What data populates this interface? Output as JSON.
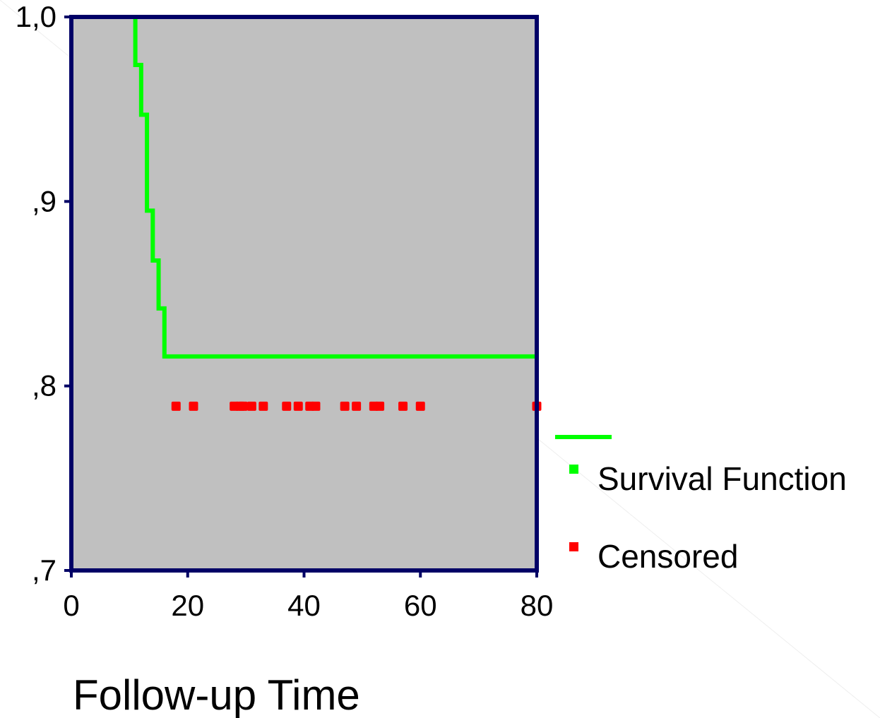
{
  "chart_data": {
    "type": "line",
    "xlabel": "Follow-up Time",
    "ylabel": "",
    "xlim": [
      0,
      80
    ],
    "ylim": [
      0.7,
      1.0
    ],
    "x_ticks": [
      0,
      20,
      40,
      60,
      80
    ],
    "x_tick_labels": [
      "0",
      "20",
      "40",
      "60",
      "80"
    ],
    "y_ticks": [
      0.7,
      0.8,
      0.9,
      1.0
    ],
    "y_tick_labels": [
      ",7",
      ",8",
      ",9",
      "1,0"
    ],
    "grid": false,
    "legend_position": "right",
    "series": [
      {
        "name": "Survival Function",
        "kind": "step",
        "color": "#00ff00",
        "x": [
          10,
          11,
          12,
          13,
          14,
          15,
          16,
          80
        ],
        "y": [
          1.0,
          0.974,
          0.947,
          0.895,
          0.868,
          0.842,
          0.816,
          0.789
        ]
      },
      {
        "name": "Censored",
        "kind": "markers",
        "color": "#ff0000",
        "x": [
          18,
          21,
          28,
          29,
          29.5,
          31,
          33,
          37,
          39,
          41,
          42,
          47,
          49,
          52,
          53,
          57,
          60,
          80
        ],
        "y": [
          0.789,
          0.789,
          0.789,
          0.789,
          0.789,
          0.789,
          0.789,
          0.789,
          0.789,
          0.789,
          0.789,
          0.789,
          0.789,
          0.789,
          0.789,
          0.789,
          0.789,
          0.789
        ]
      }
    ]
  },
  "style": {
    "plot_background": "#c0c0c0",
    "frame_color": "#000066"
  }
}
